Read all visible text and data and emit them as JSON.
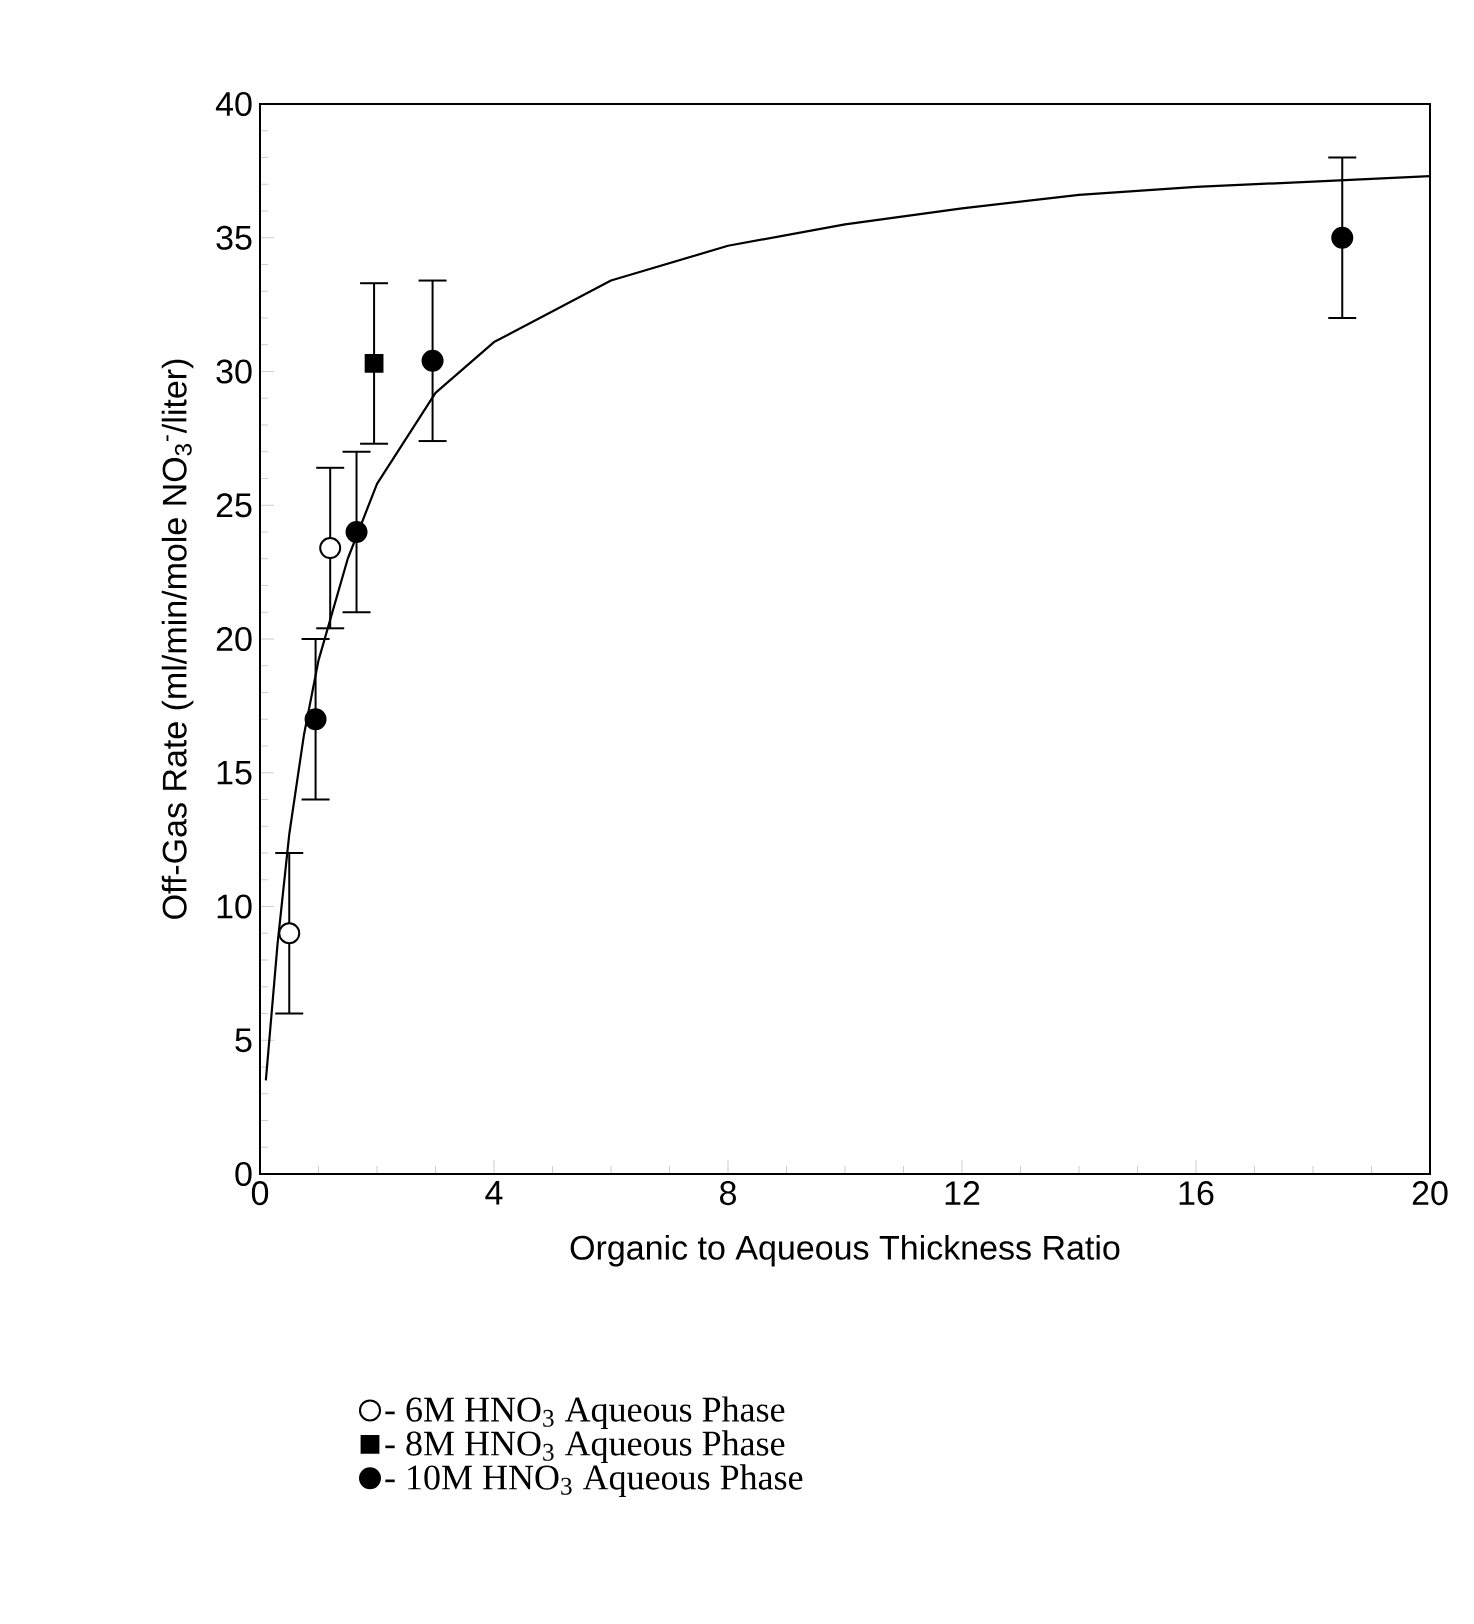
{
  "chart_data": {
    "type": "scatter",
    "xlabel": "Organic to Aqueous Thickness Ratio",
    "ylabel": "Off-Gas Rate (ml/min/mole NO$_{3}$$^{-}$/liter)",
    "xlim": [
      0,
      20
    ],
    "ylim": [
      0,
      40
    ],
    "xticks": [
      0,
      4,
      8,
      12,
      16,
      20
    ],
    "yticks": [
      0,
      5,
      10,
      15,
      20,
      25,
      30,
      35,
      40
    ],
    "legend": "bottom",
    "series": [
      {
        "name": "- 6M HNO$_{3}$ Aqueous Phase",
        "color": "#ffffff",
        "marker": "circle",
        "x": [
          0.5,
          1.2
        ],
        "values": [
          9,
          23.4
        ],
        "errors": [
          3,
          3
        ]
      },
      {
        "name": "- 8M HNO$_{3}$ Aqueous Phase",
        "color": "#000000",
        "marker": "square",
        "x": [
          1.95
        ],
        "values": [
          30.3
        ],
        "errors": [
          3
        ]
      },
      {
        "name": "- 10M HNO$_{3}$ Aqueous Phase",
        "color": "#000000",
        "marker": "circle",
        "x": [
          0.95,
          1.65,
          2.95,
          18.5
        ],
        "values": [
          17,
          24,
          30.4,
          35
        ],
        "errors": [
          3,
          3,
          3,
          3
        ]
      },
      {
        "type": "line",
        "color": "#000000",
        "marker": "none",
        "x": [
          0.1,
          0.3,
          0.5,
          0.75,
          1,
          1.5,
          2,
          3,
          4,
          6,
          8,
          10,
          12,
          14,
          16,
          18,
          20
        ],
        "values": [
          3.5,
          8.6,
          12.7,
          16.4,
          19.2,
          23,
          25.8,
          29.2,
          31.1,
          33.4,
          34.7,
          35.5,
          36.1,
          36.6,
          36.9,
          37.1,
          37.3
        ]
      }
    ]
  }
}
